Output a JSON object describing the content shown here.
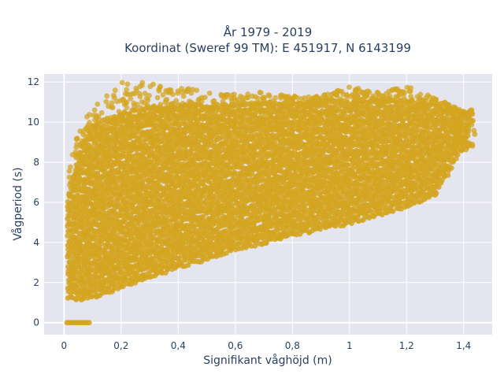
{
  "chart_data": {
    "type": "scatter",
    "title": [
      "År 1979 - 2019",
      "Koordinat (Sweref 99 TM): E 451917, N 6143199"
    ],
    "xlabel": "Signifikant våghöjd (m)",
    "ylabel": "Vågperiod (s)",
    "xlim": [
      -0.07,
      1.5
    ],
    "ylim": [
      -0.6,
      12.4
    ],
    "x_ticks": [
      0,
      0.2,
      0.4,
      0.6,
      0.8,
      1,
      1.2,
      1.4
    ],
    "x_tick_labels": [
      "0",
      "0,2",
      "0,4",
      "0,6",
      "0,8",
      "1",
      "1,2",
      "1,4"
    ],
    "y_ticks": [
      0,
      2,
      4,
      6,
      8,
      10,
      12
    ],
    "y_tick_labels": [
      "0",
      "2",
      "4",
      "6",
      "8",
      "10",
      "12"
    ],
    "grid": true,
    "marker_color": "#d4a520",
    "background_color": "#e5e5f0",
    "series": [
      {
        "name": "",
        "approx_envelope": {
          "x": [
            0.02,
            0.05,
            0.1,
            0.2,
            0.3,
            0.4,
            0.5,
            0.6,
            0.7,
            0.8,
            0.9,
            1.0,
            1.1,
            1.2,
            1.3,
            1.4
          ],
          "y_lower": [
            1.3,
            1.2,
            1.3,
            1.8,
            2.3,
            2.8,
            3.2,
            3.7,
            4.0,
            4.4,
            4.7,
            5.0,
            5.4,
            5.8,
            6.4,
            8.8
          ],
          "y_upper": [
            6.5,
            8.5,
            9.8,
            10.4,
            10.7,
            10.8,
            10.8,
            10.8,
            10.9,
            10.9,
            11.0,
            11.0,
            11.0,
            11.0,
            10.8,
            10.4
          ],
          "y_max": [
            8.0,
            9.5,
            11.0,
            12.0,
            12.0,
            11.8,
            11.5,
            11.5,
            11.5,
            11.3,
            11.3,
            11.8,
            11.5,
            11.8,
            11.2,
            10.6
          ]
        },
        "zero_period_points": {
          "x_range": [
            0.01,
            0.09
          ],
          "y": 0
        }
      }
    ]
  }
}
